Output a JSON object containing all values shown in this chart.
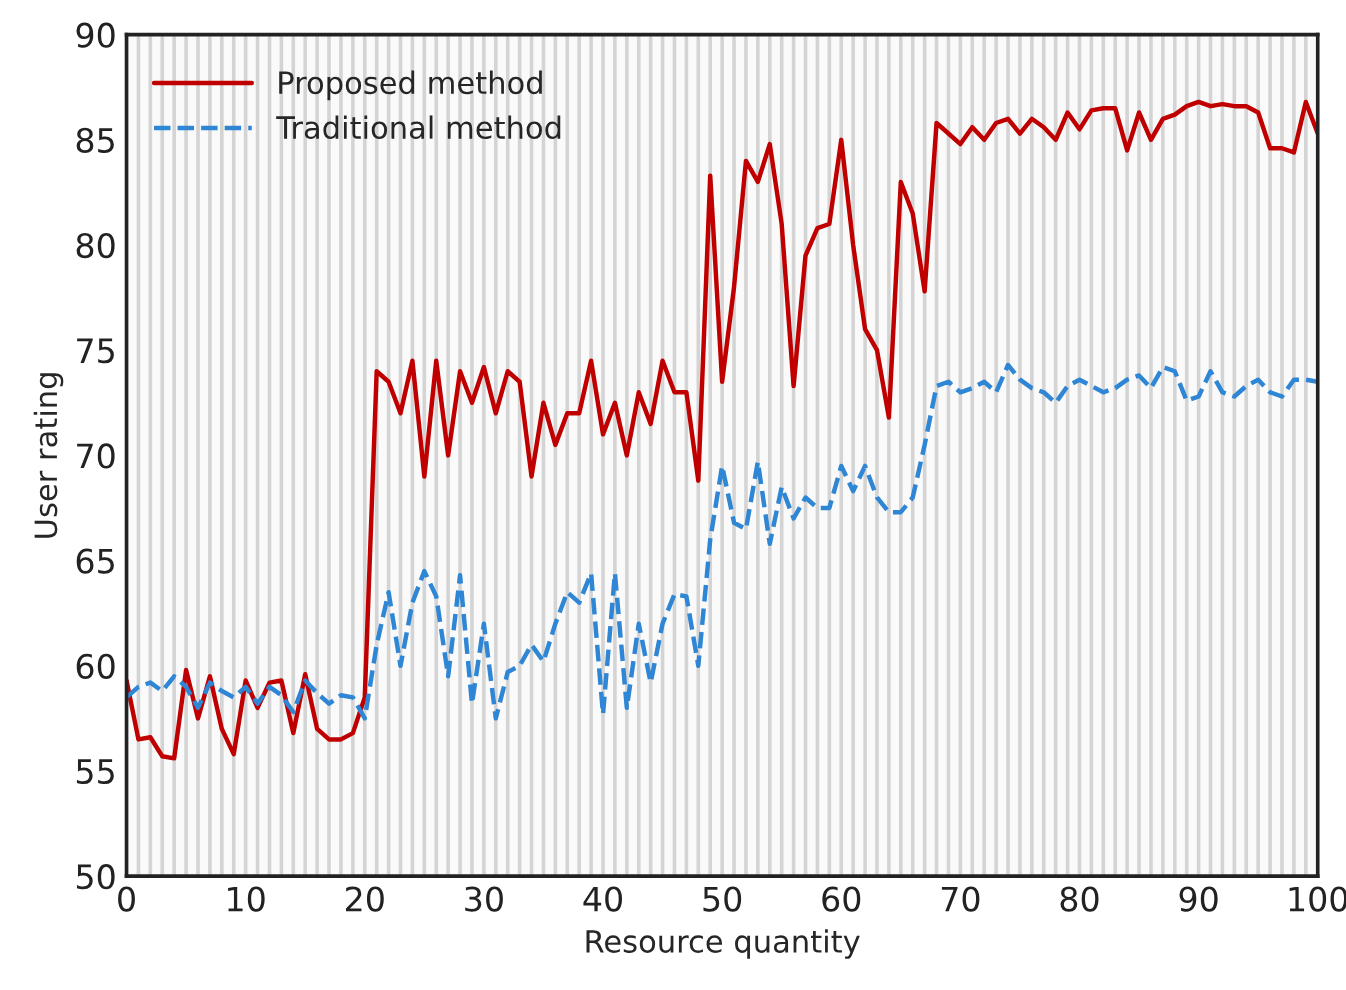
{
  "chart_data": {
    "type": "line",
    "xlabel": "Resource quantity",
    "ylabel": "User rating",
    "x": [
      0,
      1,
      2,
      3,
      4,
      5,
      6,
      7,
      8,
      9,
      10,
      11,
      12,
      13,
      14,
      15,
      16,
      17,
      18,
      19,
      20,
      21,
      22,
      23,
      24,
      25,
      26,
      27,
      28,
      29,
      30,
      31,
      32,
      33,
      34,
      35,
      36,
      37,
      38,
      39,
      40,
      41,
      42,
      43,
      44,
      45,
      46,
      47,
      48,
      49,
      50,
      51,
      52,
      53,
      54,
      55,
      56,
      57,
      58,
      59,
      60,
      61,
      62,
      63,
      64,
      65,
      66,
      67,
      68,
      69,
      70,
      71,
      72,
      73,
      74,
      75,
      76,
      77,
      78,
      79,
      80,
      81,
      82,
      83,
      84,
      85,
      86,
      87,
      88,
      89,
      90,
      91,
      92,
      93,
      94,
      95,
      96,
      97,
      98,
      99,
      100
    ],
    "series": [
      {
        "name": "Proposed method",
        "color": "#c00000",
        "line_style": "solid",
        "values": [
          59.3,
          56.5,
          56.6,
          55.7,
          55.6,
          59.8,
          57.5,
          59.5,
          57.0,
          55.8,
          59.3,
          58.0,
          59.2,
          59.3,
          56.8,
          59.6,
          57.0,
          56.5,
          56.5,
          56.8,
          58.5,
          74.0,
          73.5,
          72.0,
          74.5,
          69.0,
          74.5,
          70.0,
          74.0,
          72.5,
          74.2,
          72.0,
          74.0,
          73.5,
          69.0,
          72.5,
          70.5,
          72.0,
          72.0,
          74.5,
          71.0,
          72.5,
          70.0,
          73.0,
          71.5,
          74.5,
          73.0,
          73.0,
          68.8,
          83.3,
          73.5,
          78.0,
          84.0,
          83.0,
          84.8,
          81.0,
          73.3,
          79.5,
          80.8,
          81.0,
          85.0,
          80.0,
          76.0,
          75.0,
          71.8,
          83.0,
          81.5,
          77.8,
          85.8,
          85.3,
          84.8,
          85.6,
          85.0,
          85.8,
          86.0,
          85.3,
          86.0,
          85.6,
          85.0,
          86.3,
          85.5,
          86.4,
          86.5,
          86.5,
          84.5,
          86.3,
          85.0,
          86.0,
          86.2,
          86.6,
          86.8,
          86.6,
          86.7,
          86.6,
          86.6,
          86.3,
          84.6,
          84.6,
          84.4,
          86.8,
          85.3
        ]
      },
      {
        "name": "Traditional method",
        "color": "#2e86d4",
        "line_style": "dashed",
        "values": [
          58.5,
          59.0,
          59.2,
          58.8,
          59.5,
          59.0,
          58.0,
          59.2,
          58.8,
          58.5,
          59.0,
          58.2,
          59.0,
          58.6,
          57.8,
          59.3,
          58.7,
          58.2,
          58.6,
          58.5,
          57.5,
          61.0,
          63.5,
          60.0,
          63.0,
          64.5,
          63.3,
          59.5,
          64.3,
          58.2,
          62.0,
          57.5,
          59.7,
          60.0,
          61.0,
          60.2,
          62.0,
          63.5,
          63.0,
          64.4,
          57.7,
          64.4,
          58.0,
          62.0,
          59.2,
          62.0,
          63.4,
          63.3,
          60.0,
          66.0,
          69.5,
          66.8,
          66.5,
          69.7,
          65.8,
          68.5,
          67.0,
          68.0,
          67.5,
          67.5,
          69.5,
          68.3,
          69.5,
          68.0,
          67.3,
          67.3,
          68.0,
          70.5,
          73.3,
          73.5,
          73.0,
          73.2,
          73.5,
          73.0,
          74.3,
          73.6,
          73.2,
          73.0,
          72.5,
          73.3,
          73.6,
          73.3,
          73.0,
          73.2,
          73.6,
          73.8,
          73.2,
          74.2,
          74.0,
          72.6,
          72.8,
          74.0,
          73.0,
          72.8,
          73.3,
          73.6,
          73.0,
          72.8,
          73.6,
          73.6,
          73.5
        ]
      }
    ],
    "xlim": [
      0,
      100
    ],
    "xticks": [
      0,
      {
        "value": 1,
        "label": null
      },
      {
        "value": 2,
        "label": null
      },
      {
        "value": 3,
        "label": null
      },
      {
        "value": 4,
        "label": null
      },
      {
        "value": 5,
        "label": null
      },
      {
        "value": 6,
        "label": null
      },
      {
        "value": 7,
        "label": null
      },
      {
        "value": 8,
        "label": null
      },
      {
        "value": 9,
        "label": null
      },
      10,
      {
        "value": 11,
        "label": null
      },
      {
        "value": 12,
        "label": null
      },
      {
        "value": 13,
        "label": null
      },
      {
        "value": 14,
        "label": null
      },
      {
        "value": 15,
        "label": null
      },
      {
        "value": 16,
        "label": null
      },
      {
        "value": 17,
        "label": null
      },
      {
        "value": 18,
        "label": null
      },
      {
        "value": 19,
        "label": null
      },
      20,
      {
        "value": 21,
        "label": null
      },
      {
        "value": 22,
        "label": null
      },
      {
        "value": 23,
        "label": null
      },
      {
        "value": 24,
        "label": null
      },
      {
        "value": 25,
        "label": null
      },
      {
        "value": 26,
        "label": null
      },
      {
        "value": 27,
        "label": null
      },
      {
        "value": 28,
        "label": null
      },
      {
        "value": 29,
        "label": null
      },
      30,
      {
        "value": 31,
        "label": null
      },
      {
        "value": 32,
        "label": null
      },
      {
        "value": 33,
        "label": null
      },
      {
        "value": 34,
        "label": null
      },
      {
        "value": 35,
        "label": null
      },
      {
        "value": 36,
        "label": null
      },
      {
        "value": 37,
        "label": null
      },
      {
        "value": 38,
        "label": null
      },
      {
        "value": 39,
        "label": null
      },
      40,
      {
        "value": 41,
        "label": null
      },
      {
        "value": 42,
        "label": null
      },
      {
        "value": 43,
        "label": null
      },
      {
        "value": 44,
        "label": null
      },
      {
        "value": 45,
        "label": null
      },
      {
        "value": 46,
        "label": null
      },
      {
        "value": 47,
        "label": null
      },
      {
        "value": 48,
        "label": null
      },
      {
        "value": 49,
        "label": null
      },
      50,
      {
        "value": 51,
        "label": null
      },
      {
        "value": 52,
        "label": null
      },
      {
        "value": 53,
        "label": null
      },
      {
        "value": 54,
        "label": null
      },
      {
        "value": 55,
        "label": null
      },
      {
        "value": 56,
        "label": null
      },
      {
        "value": 57,
        "label": null
      },
      {
        "value": 58,
        "label": null
      },
      {
        "value": 59,
        "label": null
      },
      60,
      {
        "value": 61,
        "label": null
      },
      {
        "value": 62,
        "label": null
      },
      {
        "value": 63,
        "label": null
      },
      {
        "value": 64,
        "label": null
      },
      {
        "value": 65,
        "label": null
      },
      {
        "value": 66,
        "label": null
      },
      {
        "value": 67,
        "label": null
      },
      {
        "value": 68,
        "label": null
      },
      {
        "value": 69,
        "label": null
      },
      70,
      {
        "value": 71,
        "label": null
      },
      {
        "value": 72,
        "label": null
      },
      {
        "value": 73,
        "label": null
      },
      {
        "value": 74,
        "label": null
      },
      {
        "value": 75,
        "label": null
      },
      {
        "value": 76,
        "label": null
      },
      {
        "value": 77,
        "label": null
      },
      {
        "value": 78,
        "label": null
      },
      {
        "value": 79,
        "label": null
      },
      80,
      {
        "value": 81,
        "label": null
      },
      {
        "value": 82,
        "label": null
      },
      {
        "value": 83,
        "label": null
      },
      {
        "value": 84,
        "label": null
      },
      {
        "value": 85,
        "label": null
      },
      {
        "value": 86,
        "label": null
      },
      {
        "value": 87,
        "label": null
      },
      {
        "value": 88,
        "label": null
      },
      {
        "value": 89,
        "label": null
      },
      90,
      {
        "value": 91,
        "label": null
      },
      {
        "value": 92,
        "label": null
      },
      {
        "value": 93,
        "label": null
      },
      {
        "value": 94,
        "label": null
      },
      {
        "value": 95,
        "label": null
      },
      {
        "value": 96,
        "label": null
      },
      {
        "value": 97,
        "label": null
      },
      {
        "value": 98,
        "label": null
      },
      {
        "value": 99,
        "label": null
      },
      100
    ],
    "ylim": [
      50,
      90
    ],
    "yticks": [
      50,
      55,
      60,
      65,
      70,
      75,
      80,
      85,
      90
    ],
    "grid": "x",
    "legend": "top left",
    "marker": "none"
  }
}
